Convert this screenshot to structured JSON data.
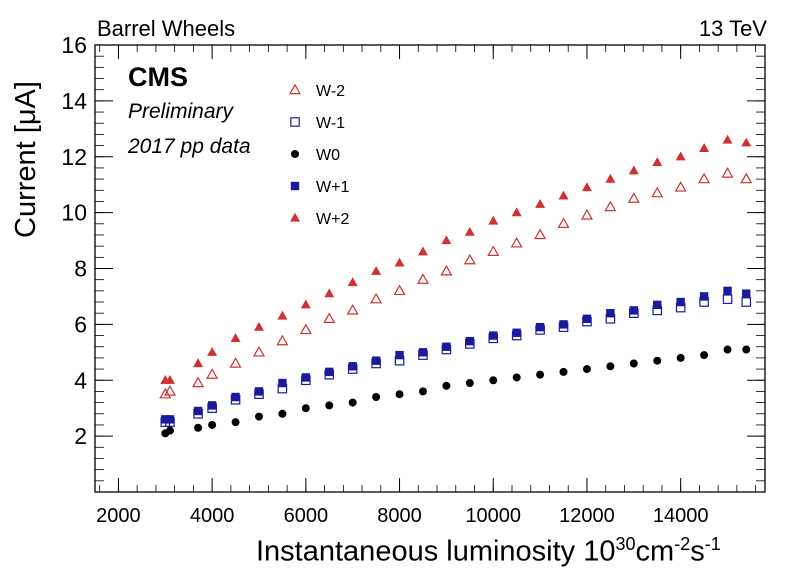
{
  "header": {
    "left_label": "Barrel Wheels",
    "right_label": "13 TeV"
  },
  "badge": {
    "experiment": "CMS",
    "status": "Preliminary",
    "dataset": "2017 pp data"
  },
  "chart_data": {
    "type": "scatter",
    "title": "",
    "xlabel": "Instantaneous luminosity 10^30 cm^-2 s^-1",
    "xlabel_parts": {
      "main": "Instantaneous luminosity 10",
      "exp1": "30",
      "unit1": "cm",
      "exp2": "-2",
      "unit2": "s",
      "exp3": "-1"
    },
    "ylabel": "Current [μA]",
    "xlim": [
      1500,
      15800
    ],
    "ylim": [
      0,
      16
    ],
    "xticks": [
      2000,
      4000,
      6000,
      8000,
      10000,
      12000,
      14000
    ],
    "xtick_labels": [
      "2000",
      "4000",
      "6000",
      "8000",
      "10000",
      "12000",
      "14000"
    ],
    "yticks": [
      2,
      4,
      6,
      8,
      10,
      12,
      14,
      16
    ],
    "ytick_labels": [
      "2",
      "4",
      "6",
      "8",
      "10",
      "12",
      "14",
      "16"
    ],
    "grid": false,
    "legend_position": "top-left",
    "series": [
      {
        "name": "W-2",
        "marker": "open-triangle",
        "color": "#d03030",
        "x": [
          3000,
          3100,
          3700,
          4000,
          4500,
          5000,
          5500,
          6000,
          6500,
          7000,
          7500,
          8000,
          8500,
          9000,
          9500,
          10000,
          10500,
          11000,
          11500,
          12000,
          12500,
          13000,
          13500,
          14000,
          14500,
          15000,
          15400
        ],
        "y": [
          3.5,
          3.6,
          3.9,
          4.2,
          4.6,
          5.0,
          5.4,
          5.8,
          6.2,
          6.5,
          6.9,
          7.2,
          7.6,
          7.9,
          8.3,
          8.6,
          8.9,
          9.2,
          9.6,
          9.9,
          10.2,
          10.5,
          10.7,
          10.9,
          11.2,
          11.4,
          11.2
        ]
      },
      {
        "name": "W-1",
        "marker": "open-square",
        "color": "#1a1aa8",
        "x": [
          3000,
          3100,
          3700,
          4000,
          4500,
          5000,
          5500,
          6000,
          6500,
          7000,
          7500,
          8000,
          8500,
          9000,
          9500,
          10000,
          10500,
          11000,
          11500,
          12000,
          12500,
          13000,
          13500,
          14000,
          14500,
          15000,
          15400
        ],
        "y": [
          2.5,
          2.5,
          2.8,
          3.0,
          3.3,
          3.5,
          3.7,
          4.0,
          4.2,
          4.4,
          4.6,
          4.7,
          4.9,
          5.1,
          5.3,
          5.5,
          5.6,
          5.8,
          5.9,
          6.1,
          6.2,
          6.4,
          6.5,
          6.6,
          6.8,
          6.9,
          6.8
        ]
      },
      {
        "name": "W0",
        "marker": "filled-circle",
        "color": "#000000",
        "x": [
          3000,
          3100,
          3700,
          4000,
          4500,
          5000,
          5500,
          6000,
          6500,
          7000,
          7500,
          8000,
          8500,
          9000,
          9500,
          10000,
          10500,
          11000,
          11500,
          12000,
          12500,
          13000,
          13500,
          14000,
          14500,
          15000,
          15400
        ],
        "y": [
          2.1,
          2.2,
          2.3,
          2.4,
          2.5,
          2.7,
          2.8,
          3.0,
          3.1,
          3.2,
          3.4,
          3.5,
          3.6,
          3.8,
          3.9,
          4.0,
          4.1,
          4.2,
          4.3,
          4.4,
          4.5,
          4.6,
          4.7,
          4.8,
          4.9,
          5.1,
          5.1
        ]
      },
      {
        "name": "W+1",
        "marker": "filled-square",
        "color": "#1a1a9c",
        "x": [
          3000,
          3100,
          3700,
          4000,
          4500,
          5000,
          5500,
          6000,
          6500,
          7000,
          7500,
          8000,
          8500,
          9000,
          9500,
          10000,
          10500,
          11000,
          11500,
          12000,
          12500,
          13000,
          13500,
          14000,
          14500,
          15000,
          15400
        ],
        "y": [
          2.6,
          2.6,
          2.9,
          3.1,
          3.4,
          3.6,
          3.9,
          4.1,
          4.3,
          4.5,
          4.7,
          4.9,
          5.0,
          5.2,
          5.4,
          5.6,
          5.7,
          5.9,
          6.0,
          6.2,
          6.4,
          6.5,
          6.7,
          6.8,
          7.0,
          7.2,
          7.1
        ]
      },
      {
        "name": "W+2",
        "marker": "filled-triangle",
        "color": "#d03030",
        "x": [
          3000,
          3100,
          3700,
          4000,
          4500,
          5000,
          5500,
          6000,
          6500,
          7000,
          7500,
          8000,
          8500,
          9000,
          9500,
          10000,
          10500,
          11000,
          11500,
          12000,
          12500,
          13000,
          13500,
          14000,
          14500,
          15000,
          15400
        ],
        "y": [
          4.0,
          4.0,
          4.6,
          5.0,
          5.5,
          5.9,
          6.3,
          6.7,
          7.1,
          7.5,
          7.9,
          8.2,
          8.6,
          9.0,
          9.3,
          9.7,
          10.0,
          10.3,
          10.6,
          10.9,
          11.2,
          11.5,
          11.8,
          12.0,
          12.3,
          12.6,
          12.5
        ]
      }
    ]
  }
}
